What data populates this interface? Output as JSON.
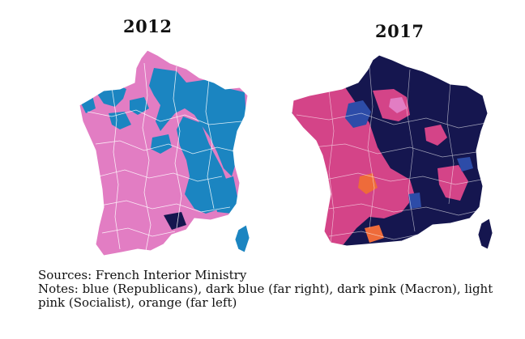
{
  "maps": [
    {
      "title": "2012"
    },
    {
      "title": "2017"
    }
  ],
  "colors": {
    "light_pink": "#e27dc3",
    "dark_pink": "#d44488",
    "blue": "#1b85c1",
    "dark_blue": "#15164f",
    "orange": "#ee6b3a",
    "border": "#ffffff"
  },
  "sources": "Sources: French Interior Ministry",
  "notes": "Notes: blue (Republicans), dark blue (far right), dark pink (Macron), light pink (Socialist), orange (far left)"
}
